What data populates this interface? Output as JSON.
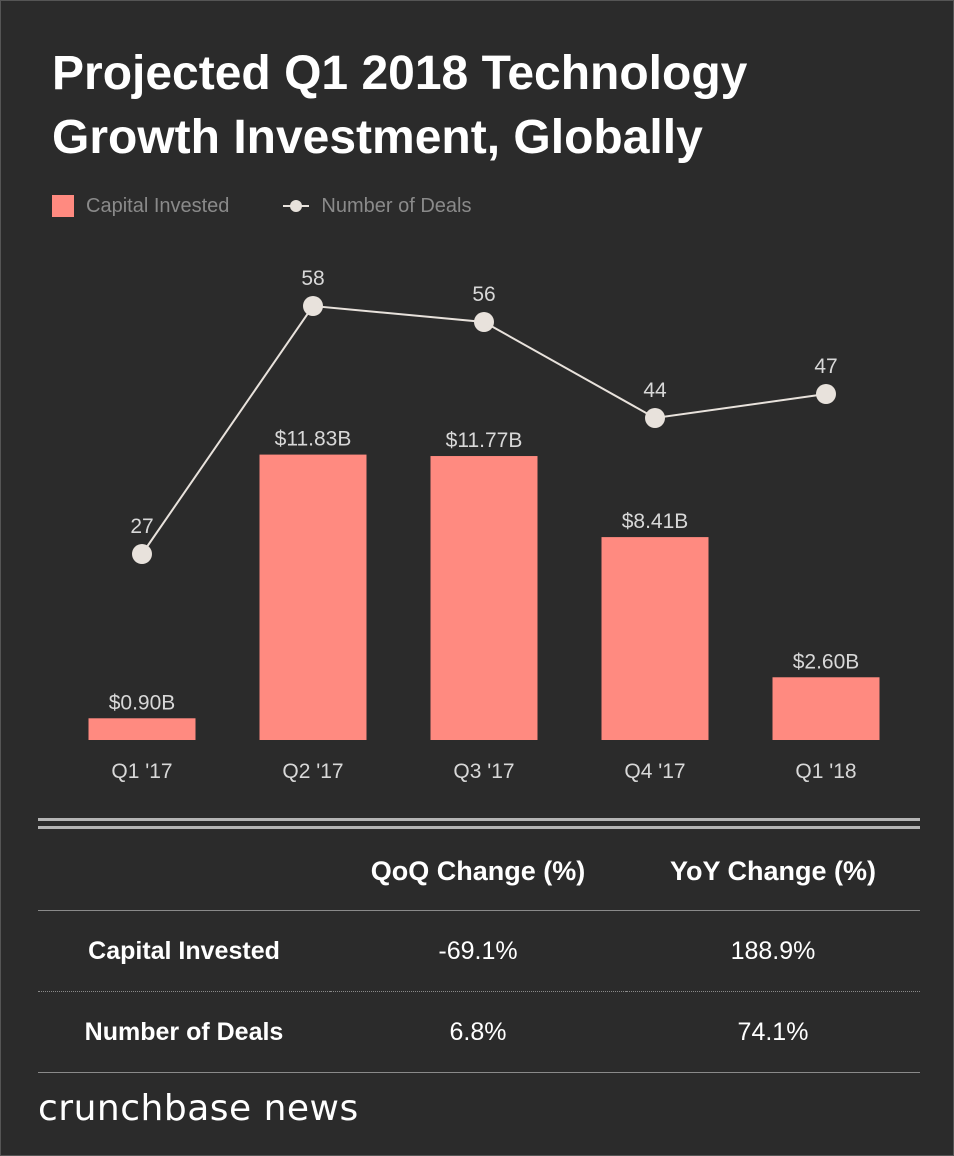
{
  "title": "Projected Q1 2018 Technology Growth Investment, Globally",
  "colors": {
    "bar": "#ff8a80",
    "line": "#e8e2dc",
    "text_label": "#d8d8d8",
    "background": "#2b2b2b"
  },
  "legend": {
    "bar_label": "Capital Invested",
    "line_label": "Number of Deals"
  },
  "chart_data": {
    "type": "bar+line",
    "title": "Projected Q1 2018 Technology Growth Investment, Globally",
    "categories": [
      "Q1 '17",
      "Q2 '17",
      "Q3 '17",
      "Q4 '17",
      "Q1 '18"
    ],
    "series": [
      {
        "name": "Capital Invested",
        "type": "bar",
        "values": [
          0.9,
          11.83,
          11.77,
          8.41,
          2.6
        ],
        "labels": [
          "$0.90B",
          "$11.83B",
          "$11.77B",
          "$8.41B",
          "$2.60B"
        ],
        "unit": "$B"
      },
      {
        "name": "Number of Deals",
        "type": "line",
        "values": [
          27,
          58,
          56,
          44,
          47
        ],
        "labels": [
          "27",
          "58",
          "56",
          "44",
          "47"
        ]
      }
    ],
    "ylim_bar": [
      0,
      14.3
    ],
    "ylim_line": [
      10,
      65
    ],
    "grid": false,
    "legend_position": "top-left"
  },
  "table": {
    "headers": [
      "",
      "QoQ Change (%)",
      "YoY Change (%)"
    ],
    "rows": [
      {
        "label": "Capital Invested",
        "qoq": "-69.1%",
        "yoy": "188.9%"
      },
      {
        "label": "Number of Deals",
        "qoq": "6.8%",
        "yoy": "74.1%"
      }
    ]
  },
  "brand": "crunchbase news"
}
